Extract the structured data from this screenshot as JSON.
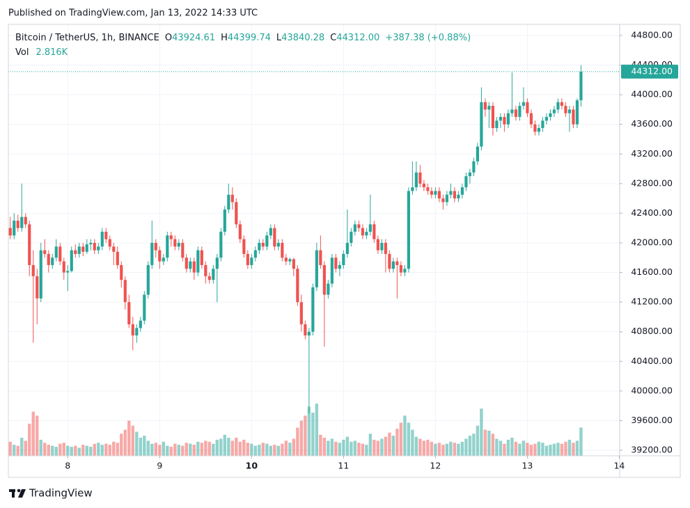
{
  "header": {
    "published": "Published on TradingView.com, Jan 13, 2022 14:33 UTC",
    "symbol": "Bitcoin / TetherUS, 1h, BINANCE",
    "open_label": "O",
    "open": "43924.61",
    "high_label": "H",
    "high": "44399.74",
    "low_label": "L",
    "low": "43840.28",
    "close_label": "C",
    "close": "44312.00",
    "change": "+387.38 (+0.88%)",
    "volume_label": "Vol",
    "volume": "2.816K",
    "last_price": "44312.00"
  },
  "footer": {
    "brand": "TradingView"
  },
  "chart_data": {
    "type": "candlestick",
    "up_color": "#26a69a",
    "down_color": "#ef5350",
    "ylim": [
      39125,
      44950
    ],
    "yticks": [
      {
        "value": 44800,
        "label": "44800.00"
      },
      {
        "value": 44400,
        "label": "44400.00"
      },
      {
        "value": 44000,
        "label": "44000.00"
      },
      {
        "value": 43600,
        "label": "43600.00"
      },
      {
        "value": 43200,
        "label": "43200.00"
      },
      {
        "value": 42800,
        "label": "42800.00"
      },
      {
        "value": 42400,
        "label": "42400.00"
      },
      {
        "value": 42000,
        "label": "42000.00"
      },
      {
        "value": 41600,
        "label": "41600.00"
      },
      {
        "value": 41200,
        "label": "41200.00"
      },
      {
        "value": 40800,
        "label": "40800.00"
      },
      {
        "value": 40400,
        "label": "40400.00"
      },
      {
        "value": 40000,
        "label": "40000.00"
      },
      {
        "value": 39600,
        "label": "39600.00"
      },
      {
        "value": 39200,
        "label": "39200.00"
      }
    ],
    "xlim": [
      -0.5,
      159.1
    ],
    "xticks": [
      {
        "value": 15,
        "label": "8"
      },
      {
        "value": 39,
        "label": "9"
      },
      {
        "value": 63,
        "label": "10"
      },
      {
        "value": 87,
        "label": "11"
      },
      {
        "value": 111,
        "label": "12"
      },
      {
        "value": 135,
        "label": "13"
      },
      {
        "value": 159,
        "label": "14"
      }
    ],
    "last_value": 44312,
    "candles": [
      [
        42200,
        42350,
        42050,
        42100
      ],
      [
        42100,
        42400,
        42050,
        42300
      ],
      [
        42300,
        42380,
        42150,
        42200
      ],
      [
        42200,
        42800,
        42150,
        42350
      ],
      [
        42350,
        42400,
        42200,
        42250
      ],
      [
        42250,
        42300,
        41550,
        41700
      ],
      [
        41700,
        41900,
        40650,
        41550
      ],
      [
        41550,
        41650,
        40900,
        41250
      ],
      [
        41250,
        42000,
        41200,
        41900
      ],
      [
        41900,
        42050,
        41800,
        41850
      ],
      [
        41850,
        41900,
        41600,
        41700
      ],
      [
        41700,
        41850,
        41650,
        41800
      ],
      [
        41800,
        42050,
        41750,
        41950
      ],
      [
        41950,
        42000,
        41700,
        41750
      ],
      [
        41750,
        41800,
        41500,
        41600
      ],
      [
        41600,
        41700,
        41350,
        41620
      ],
      [
        41620,
        41950,
        41600,
        41900
      ],
      [
        41900,
        41980,
        41800,
        41850
      ],
      [
        41850,
        42000,
        41800,
        41950
      ],
      [
        41950,
        42000,
        41820,
        41880
      ],
      [
        41880,
        42050,
        41850,
        41980
      ],
      [
        41980,
        42050,
        41900,
        42000
      ],
      [
        42000,
        42050,
        41850,
        41900
      ],
      [
        41900,
        42000,
        41850,
        41950
      ],
      [
        41950,
        42200,
        41900,
        42150
      ],
      [
        42150,
        42200,
        42000,
        42050
      ],
      [
        42050,
        42100,
        41900,
        41950
      ],
      [
        41950,
        42000,
        41700,
        41880
      ],
      [
        41880,
        41950,
        41650,
        41700
      ],
      [
        41700,
        41750,
        41400,
        41500
      ],
      [
        41500,
        41550,
        41100,
        41200
      ],
      [
        41200,
        41300,
        40850,
        40900
      ],
      [
        40900,
        41000,
        40550,
        40750
      ],
      [
        40750,
        40900,
        40650,
        40850
      ],
      [
        40850,
        41000,
        40800,
        40950
      ],
      [
        40950,
        41350,
        40900,
        41300
      ],
      [
        41300,
        41750,
        41250,
        41700
      ],
      [
        41700,
        42300,
        41650,
        42000
      ],
      [
        42000,
        42050,
        41800,
        41900
      ],
      [
        41900,
        41950,
        41650,
        41750
      ],
      [
        41750,
        41850,
        41700,
        41800
      ],
      [
        41800,
        42150,
        41750,
        42100
      ],
      [
        42100,
        42150,
        41950,
        42050
      ],
      [
        42050,
        42100,
        41900,
        41950
      ],
      [
        41950,
        42050,
        41900,
        42000
      ],
      [
        42000,
        42050,
        41750,
        41800
      ],
      [
        41800,
        41850,
        41600,
        41650
      ],
      [
        41650,
        41800,
        41600,
        41750
      ],
      [
        41750,
        41800,
        41500,
        41600
      ],
      [
        41600,
        41950,
        41550,
        41900
      ],
      [
        41900,
        41950,
        41650,
        41700
      ],
      [
        41700,
        41750,
        41450,
        41550
      ],
      [
        41550,
        41600,
        41450,
        41500
      ],
      [
        41500,
        41700,
        41450,
        41650
      ],
      [
        41650,
        41850,
        41200,
        41800
      ],
      [
        41800,
        42200,
        41750,
        42150
      ],
      [
        42150,
        42500,
        42100,
        42450
      ],
      [
        42450,
        42800,
        42400,
        42650
      ],
      [
        42650,
        42750,
        42450,
        42550
      ],
      [
        42550,
        42600,
        42200,
        42250
      ],
      [
        42250,
        42300,
        42000,
        42050
      ],
      [
        42050,
        42100,
        41800,
        41850
      ],
      [
        41850,
        41900,
        41650,
        41700
      ],
      [
        41700,
        41850,
        41650,
        41800
      ],
      [
        41800,
        41950,
        41750,
        41900
      ],
      [
        41900,
        42050,
        41850,
        42000
      ],
      [
        42000,
        42050,
        41900,
        41950
      ],
      [
        41950,
        42150,
        41900,
        42100
      ],
      [
        42100,
        42250,
        42050,
        42200
      ],
      [
        42200,
        42250,
        41900,
        41950
      ],
      [
        41950,
        42050,
        41900,
        42000
      ],
      [
        42000,
        42050,
        41750,
        41800
      ],
      [
        41800,
        41850,
        41700,
        41750
      ],
      [
        41750,
        41800,
        41700,
        41780
      ],
      [
        41780,
        41800,
        41550,
        41650
      ],
      [
        41650,
        41700,
        41150,
        41200
      ],
      [
        41200,
        41300,
        40800,
        40900
      ],
      [
        40900,
        40950,
        40700,
        40750
      ],
      [
        40750,
        40850,
        39700,
        40800
      ],
      [
        40800,
        41450,
        40750,
        41400
      ],
      [
        41400,
        42000,
        41350,
        41900
      ],
      [
        41900,
        42100,
        41650,
        41700
      ],
      [
        41700,
        41750,
        40600,
        41300
      ],
      [
        41300,
        41500,
        41250,
        41450
      ],
      [
        41450,
        41850,
        41400,
        41800
      ],
      [
        41800,
        41850,
        41600,
        41650
      ],
      [
        41650,
        41750,
        41550,
        41700
      ],
      [
        41700,
        41900,
        41650,
        41850
      ],
      [
        41850,
        42450,
        41800,
        42000
      ],
      [
        42000,
        42200,
        41950,
        42150
      ],
      [
        42150,
        42300,
        42100,
        42250
      ],
      [
        42250,
        42300,
        42150,
        42200
      ],
      [
        42200,
        42250,
        42050,
        42100
      ],
      [
        42100,
        42200,
        42050,
        42150
      ],
      [
        42150,
        42650,
        42100,
        42250
      ],
      [
        42250,
        42300,
        42000,
        42050
      ],
      [
        42050,
        42100,
        41850,
        41900
      ],
      [
        41900,
        42050,
        41850,
        42000
      ],
      [
        42000,
        42050,
        41600,
        41850
      ],
      [
        41850,
        41900,
        41600,
        41650
      ],
      [
        41650,
        41800,
        41600,
        41750
      ],
      [
        41750,
        41800,
        41250,
        41700
      ],
      [
        41700,
        41750,
        41550,
        41600
      ],
      [
        41600,
        41700,
        41550,
        41650
      ],
      [
        41650,
        42750,
        41600,
        42700
      ],
      [
        42700,
        43100,
        42650,
        42750
      ],
      [
        42750,
        43100,
        42700,
        42950
      ],
      [
        42950,
        43050,
        42750,
        42800
      ],
      [
        42800,
        42850,
        42700,
        42750
      ],
      [
        42750,
        42800,
        42650,
        42700
      ],
      [
        42700,
        42750,
        42600,
        42650
      ],
      [
        42650,
        42750,
        42600,
        42700
      ],
      [
        42700,
        42750,
        42550,
        42600
      ],
      [
        42600,
        42650,
        42450,
        42550
      ],
      [
        42550,
        42700,
        42500,
        42650
      ],
      [
        42650,
        42800,
        42600,
        42700
      ],
      [
        42700,
        42750,
        42550,
        42600
      ],
      [
        42600,
        42700,
        42550,
        42650
      ],
      [
        42650,
        42800,
        42600,
        42750
      ],
      [
        42750,
        42950,
        42700,
        42900
      ],
      [
        42900,
        43000,
        42800,
        42950
      ],
      [
        42950,
        43150,
        42900,
        43100
      ],
      [
        43100,
        43350,
        43050,
        43300
      ],
      [
        43300,
        44100,
        43250,
        43900
      ],
      [
        43900,
        43950,
        43700,
        43800
      ],
      [
        43800,
        43900,
        43550,
        43850
      ],
      [
        43850,
        43900,
        43450,
        43550
      ],
      [
        43550,
        43700,
        43500,
        43650
      ],
      [
        43650,
        43750,
        43550,
        43700
      ],
      [
        43700,
        43750,
        43500,
        43600
      ],
      [
        43600,
        43800,
        43550,
        43750
      ],
      [
        43750,
        44300,
        43700,
        43800
      ],
      [
        43800,
        43850,
        43650,
        43700
      ],
      [
        43700,
        43900,
        43650,
        43850
      ],
      [
        43850,
        44100,
        43800,
        43900
      ],
      [
        43900,
        43950,
        43700,
        43750
      ],
      [
        43750,
        43800,
        43550,
        43600
      ],
      [
        43600,
        43650,
        43450,
        43500
      ],
      [
        43500,
        43600,
        43450,
        43550
      ],
      [
        43550,
        43700,
        43500,
        43650
      ],
      [
        43650,
        43750,
        43600,
        43700
      ],
      [
        43700,
        43800,
        43650,
        43750
      ],
      [
        43750,
        43850,
        43700,
        43800
      ],
      [
        43800,
        43950,
        43750,
        43900
      ],
      [
        43900,
        43950,
        43800,
        43850
      ],
      [
        43850,
        43900,
        43700,
        43750
      ],
      [
        43750,
        43850,
        43500,
        43800
      ],
      [
        43800,
        43850,
        43550,
        43600
      ],
      [
        43600,
        43950,
        43550,
        43924.61
      ],
      [
        43924.61,
        44399.74,
        43840.28,
        44312
      ]
    ],
    "volume": [
      1400,
      1100,
      1000,
      1800,
      1500,
      3200,
      4400,
      4000,
      1600,
      1300,
      1100,
      1000,
      900,
      1200,
      1300,
      1000,
      900,
      1000,
      800,
      1100,
      1000,
      900,
      1200,
      1300,
      1100,
      1200,
      1100,
      1400,
      1300,
      2200,
      2600,
      3500,
      3000,
      2400,
      1800,
      2000,
      1500,
      1200,
      1300,
      1100,
      1400,
      1000,
      900,
      1200,
      1100,
      1000,
      1300,
      1200,
      1100,
      1400,
      1300,
      1500,
      1400,
      1200,
      1600,
      1700,
      2100,
      1800,
      1500,
      1800,
      1400,
      1600,
      1300,
      1200,
      1000,
      1100,
      1300,
      1200,
      1000,
      1100,
      1000,
      1200,
      1500,
      1300,
      1700,
      2800,
      3500,
      4000,
      4900,
      4300,
      5200,
      2100,
      1800,
      1500,
      1700,
      1400,
      1300,
      1600,
      1900,
      1400,
      1500,
      1300,
      1200,
      1100,
      2200,
      1600,
      1500,
      1700,
      1900,
      2300,
      2000,
      2700,
      3300,
      4000,
      3300,
      2600,
      1900,
      1700,
      1500,
      1600,
      1400,
      1200,
      1300,
      1100,
      1200,
      1400,
      1300,
      1200,
      1400,
      1700,
      2000,
      2200,
      3000,
      4700,
      2600,
      2500,
      2200,
      1700,
      1500,
      1200,
      1600,
      1800,
      1400,
      1200,
      1500,
      1300,
      1100,
      1200,
      1400,
      1300,
      1000,
      1100,
      1200,
      1300,
      1200,
      1400,
      1600,
      1300,
      1500,
      2816
    ]
  }
}
